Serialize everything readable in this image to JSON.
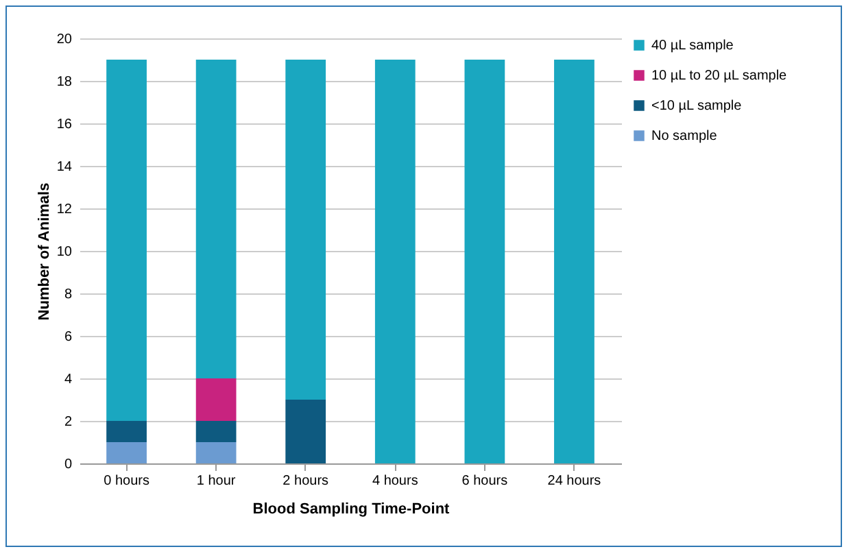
{
  "chart_data": {
    "type": "bar",
    "stacked": true,
    "xlabel": "Blood Sampling Time-Point",
    "ylabel": "Number of Animals",
    "categories": [
      "0 hours",
      "1 hour",
      "2 hours",
      "4 hours",
      "6 hours",
      "24 hours"
    ],
    "series": [
      {
        "name": "No sample",
        "color": "#6b9bd1",
        "values": [
          1,
          1,
          0,
          0,
          0,
          0
        ]
      },
      {
        "name": "<10 µL sample",
        "color": "#0e5a80",
        "values": [
          1,
          1,
          3,
          0,
          0,
          0
        ]
      },
      {
        "name": "10 µL to 20 µL sample",
        "color": "#c8237f",
        "values": [
          0,
          2,
          0,
          0,
          0,
          0
        ]
      },
      {
        "name": "40 µL sample",
        "color": "#1aa7c0",
        "values": [
          17,
          15,
          16,
          19,
          19,
          19
        ]
      }
    ],
    "ylim": [
      0,
      20
    ],
    "yticks": [
      0,
      2,
      4,
      6,
      8,
      10,
      12,
      14,
      16,
      18,
      20
    ],
    "grid": "y",
    "legend": "right"
  }
}
